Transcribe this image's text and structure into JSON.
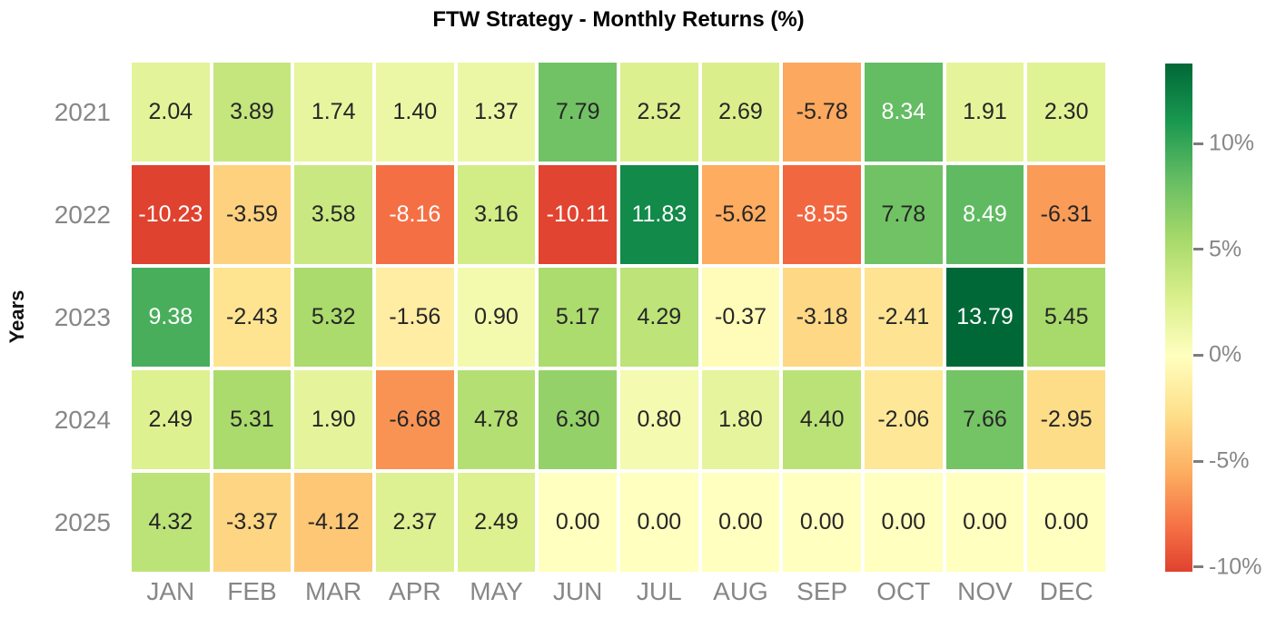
{
  "chart_data": {
    "type": "heatmap",
    "title": "FTW Strategy - Monthly Returns (%)",
    "ylabel": "Years",
    "xlabel": "",
    "columns": [
      "JAN",
      "FEB",
      "MAR",
      "APR",
      "MAY",
      "JUN",
      "JUL",
      "AUG",
      "SEP",
      "OCT",
      "NOV",
      "DEC"
    ],
    "rows": [
      "2021",
      "2022",
      "2023",
      "2024",
      "2025"
    ],
    "values": [
      [
        2.04,
        3.89,
        1.74,
        1.4,
        1.37,
        7.79,
        2.52,
        2.69,
        -5.78,
        8.34,
        1.91,
        2.3
      ],
      [
        -10.23,
        -3.59,
        3.58,
        -8.16,
        3.16,
        -10.11,
        11.83,
        -5.62,
        -8.55,
        7.78,
        8.49,
        -6.31
      ],
      [
        9.38,
        -2.43,
        5.32,
        -1.56,
        0.9,
        5.17,
        4.29,
        -0.37,
        -3.18,
        -2.41,
        13.79,
        5.45
      ],
      [
        2.49,
        5.31,
        1.9,
        -6.68,
        4.78,
        6.3,
        0.8,
        1.8,
        4.4,
        -2.06,
        7.66,
        -2.95
      ],
      [
        4.32,
        -3.37,
        -4.12,
        2.37,
        2.49,
        0.0,
        0.0,
        0.0,
        0.0,
        0.0,
        0.0,
        0.0
      ]
    ],
    "value_decimals": 2,
    "colormap": {
      "name": "RdYlGn",
      "anchors": [
        "#a50026",
        "#d73027",
        "#f46d43",
        "#fdae61",
        "#fee08b",
        "#ffffbf",
        "#d9ef8b",
        "#a6d96a",
        "#66bd63",
        "#1a9850",
        "#006837"
      ],
      "center": 0,
      "norm_vmin": -13.79,
      "norm_vmax": 13.79
    },
    "annotation_colors": {
      "dark": "#262626",
      "light": "#ffffff"
    },
    "colorbar": {
      "display_min": -10.23,
      "display_max": 13.79,
      "ticks": [
        {
          "value": 10,
          "label": "10%"
        },
        {
          "value": 5,
          "label": "5%"
        },
        {
          "value": 0,
          "label": "0%"
        },
        {
          "value": -5,
          "label": "-5%"
        },
        {
          "value": -10,
          "label": "-10%"
        }
      ]
    },
    "layout": {
      "grid": "off",
      "legend": "colorbar-right",
      "tick_label_color": "#878787",
      "background": "#ffffff",
      "cell_gap_color": "#ffffff"
    }
  }
}
